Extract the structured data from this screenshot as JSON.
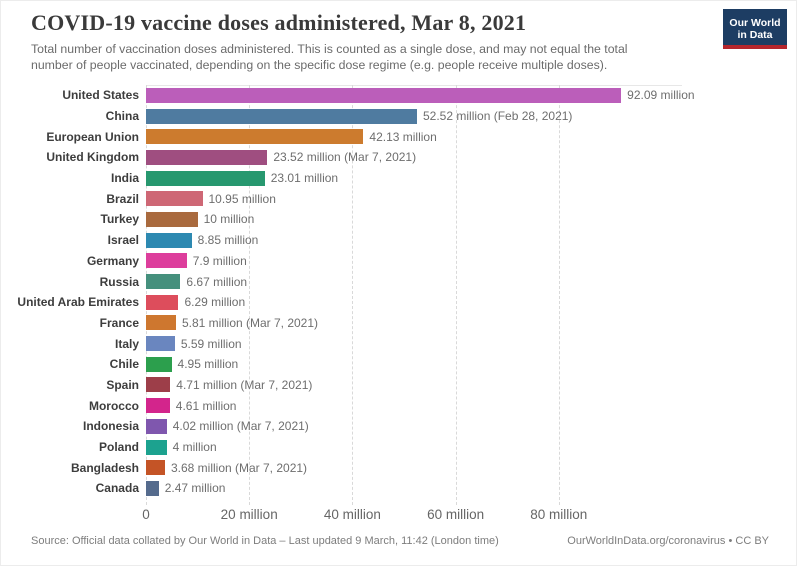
{
  "header": {
    "title": "COVID-19 vaccine doses administered, Mar 8, 2021",
    "subtitle_line1": "Total number of vaccination doses administered. This is counted as a single dose, and may not equal the total",
    "subtitle_line2": "number of people vaccinated, depending on the specific dose regime (e.g. people receive multiple doses)."
  },
  "logo": {
    "line1": "Our World",
    "line2": "in Data",
    "bg_color": "#1d3d63",
    "stripe_color": "#b5262d"
  },
  "footer": {
    "source": "Source: Official data collated by Our World in Data – Last updated 9 March, 11:42 (London time)",
    "link": "OurWorldInData.org/coronavirus • CC BY"
  },
  "chart_data": {
    "type": "bar",
    "orientation": "horizontal",
    "title": "COVID-19 vaccine doses administered, Mar 8, 2021",
    "xlabel": "",
    "ylabel": "",
    "grid": "vertical-dashed",
    "legend": "none",
    "xlim_million": [
      0,
      100
    ],
    "x_ticks": [
      {
        "value_million": 0,
        "label": "0"
      },
      {
        "value_million": 20,
        "label": "20 million"
      },
      {
        "value_million": 40,
        "label": "40 million"
      },
      {
        "value_million": 60,
        "label": "60 million"
      },
      {
        "value_million": 80,
        "label": "80 million"
      }
    ],
    "categories": [
      "United States",
      "China",
      "European Union",
      "United Kingdom",
      "India",
      "Brazil",
      "Turkey",
      "Israel",
      "Germany",
      "Russia",
      "United Arab Emirates",
      "France",
      "Italy",
      "Chile",
      "Spain",
      "Morocco",
      "Indonesia",
      "Poland",
      "Bangladesh",
      "Canada"
    ],
    "values_million": [
      92.09,
      52.52,
      42.13,
      23.52,
      23.01,
      10.95,
      10,
      8.85,
      7.9,
      6.67,
      6.29,
      5.81,
      5.59,
      4.95,
      4.71,
      4.61,
      4.02,
      4,
      3.68,
      2.47
    ],
    "value_labels": [
      "92.09 million",
      "52.52 million (Feb 28, 2021)",
      "42.13 million",
      "23.52 million (Mar 7, 2021)",
      "23.01 million",
      "10.95 million",
      "10 million",
      "8.85 million",
      "7.9 million",
      "6.67 million",
      "6.29 million",
      "5.81 million (Mar 7, 2021)",
      "5.59 million",
      "4.95 million",
      "4.71 million (Mar 7, 2021)",
      "4.61 million",
      "4.02 million (Mar 7, 2021)",
      "4 million",
      "3.68 million (Mar 7, 2021)",
      "2.47 million"
    ],
    "bar_colors": [
      "#bb5eba",
      "#4f7ba0",
      "#cc7b2e",
      "#9f4e80",
      "#27986f",
      "#ce6775",
      "#a96a3e",
      "#2d89b1",
      "#dd3e9c",
      "#45907d",
      "#dd4d5c",
      "#ce772f",
      "#6a86bf",
      "#2c9f4d",
      "#9d3e49",
      "#d3258c",
      "#7f57ae",
      "#1ca28f",
      "#c45426",
      "#556b8d"
    ]
  }
}
